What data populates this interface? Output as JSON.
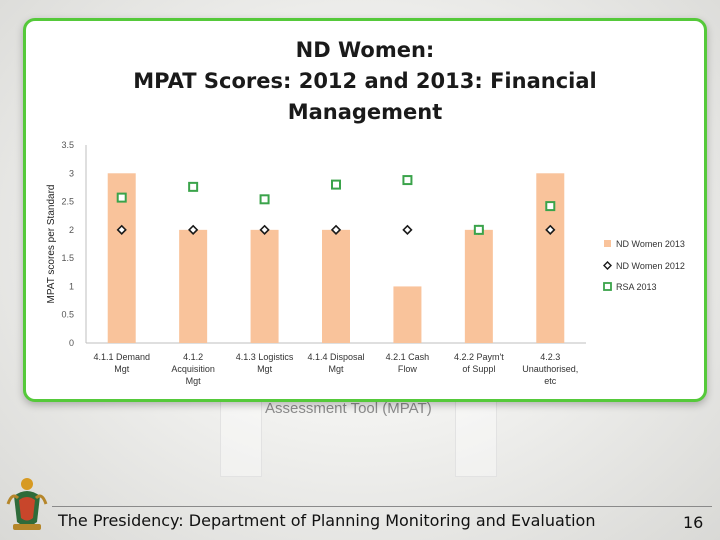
{
  "slide": {
    "background_text": "Assessment Tool (MPAT)",
    "footer": "The Presidency: Department of Planning Monitoring and Evaluation",
    "page_number": "16"
  },
  "chart_data": {
    "type": "bar",
    "title_lines": [
      "ND Women:",
      "MPAT Scores: 2012 and 2013: Financial",
      "Management"
    ],
    "ylabel": "MPAT scores per Standard",
    "ylim": [
      0,
      3.5
    ],
    "yticks": [
      "0",
      "0.5",
      "1",
      "1.5",
      "2",
      "2.5",
      "3",
      "3.5"
    ],
    "categories": [
      [
        "4.1.1 Demand",
        "Mgt"
      ],
      [
        "4.1.2",
        "Acquisition",
        "Mgt"
      ],
      [
        "4.1.3 Logistics",
        "Mgt"
      ],
      [
        "4.1.4 Disposal",
        "Mgt"
      ],
      [
        "4.2.1 Cash",
        "Flow"
      ],
      [
        "4.2.2 Paym't",
        "of Suppl"
      ],
      [
        "4.2.3",
        "Unauthorised,",
        "etc"
      ]
    ],
    "series": [
      {
        "name": "ND Women 2013",
        "kind": "bar",
        "color": "#f9c39b",
        "values": [
          3,
          2,
          2,
          2,
          1,
          2,
          3
        ]
      },
      {
        "name": "ND Women 2012",
        "kind": "marker-diamond",
        "color": "#1a1a1a",
        "values": [
          2,
          2,
          2,
          2,
          2,
          2,
          2
        ]
      },
      {
        "name": "RSA 2013",
        "kind": "marker-square",
        "color": "#3aa34a",
        "values": [
          2.57,
          2.76,
          2.54,
          2.8,
          2.88,
          2.0,
          2.42
        ]
      }
    ],
    "legend_position": "right",
    "grid": false
  }
}
